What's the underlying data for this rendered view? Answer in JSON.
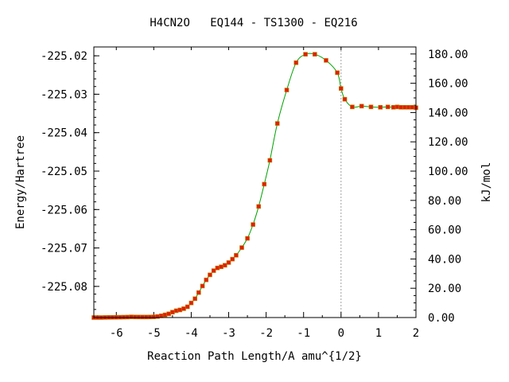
{
  "chart_data": {
    "type": "line",
    "title": "H4CN2O   EQ144 - TS1300 - EQ216",
    "xlabel": "Reaction Path Length/A amu^{1/2}",
    "ylabel": "Energy/Hartree",
    "y2label": "kJ/mol",
    "xlim": [
      -6.6,
      2.0
    ],
    "ylim": [
      -225.0881,
      -225.0177
    ],
    "y2lim": [
      0.0,
      184.8
    ],
    "x_ticks": [
      -6,
      -5,
      -4,
      -3,
      -2,
      -1,
      0,
      1,
      2
    ],
    "x_tick_labels": [
      "-6",
      "-5",
      "-4",
      "-3",
      "-2",
      "-1",
      "0",
      "1",
      "2"
    ],
    "y_ticks": [
      -225.02,
      -225.03,
      -225.04,
      -225.05,
      -225.06,
      -225.07,
      -225.08
    ],
    "y_tick_labels": [
      "-225.02",
      "-225.03",
      "-225.04",
      "-225.05",
      "-225.06",
      "-225.07",
      "-225.08"
    ],
    "y2_ticks": [
      0,
      20,
      40,
      60,
      80,
      100,
      120,
      140,
      160,
      180
    ],
    "y2_tick_labels": [
      "0.00",
      "20.00",
      "40.00",
      "60.00",
      "80.00",
      "100.00",
      "120.00",
      "140.00",
      "160.00",
      "180.00"
    ],
    "ts_marker_x": 0.0,
    "colors": {
      "curve": "#00a000",
      "marker": "#e02000",
      "marker_center": "#c08000",
      "ts_line": "#a0a0a0",
      "axis": "#000000"
    },
    "series": [
      {
        "x": [
          -6.6,
          -6.5,
          -6.4,
          -6.3,
          -6.2,
          -6.1,
          -6.0,
          -5.9,
          -5.8,
          -5.7,
          -5.6,
          -5.5,
          -5.4,
          -5.3,
          -5.2,
          -5.1,
          -5.0,
          -4.9,
          -4.8,
          -4.7,
          -4.6,
          -4.5,
          -4.4,
          -4.3,
          -4.2,
          -4.1,
          -4.0,
          -3.9,
          -3.8,
          -3.7,
          -3.6,
          -3.5,
          -3.4,
          -3.3,
          -3.2,
          -3.1,
          -3.0,
          -2.9,
          -2.8,
          -2.65,
          -2.5,
          -2.35,
          -2.2,
          -2.05,
          -1.9,
          -1.7,
          -1.45,
          -1.2,
          -0.95,
          -0.7,
          -0.4,
          -0.1,
          0.0,
          0.1,
          0.3,
          0.55,
          0.8,
          1.05,
          1.25,
          1.4,
          1.5,
          1.6,
          1.7,
          1.8,
          1.9,
          2.0
        ],
        "y": [
          -225.0881,
          -225.0881,
          -225.0881,
          -225.08808,
          -225.08806,
          -225.08805,
          -225.08804,
          -225.08802,
          -225.088,
          -225.08798,
          -225.08792,
          -225.08795,
          -225.08796,
          -225.08797,
          -225.08797,
          -225.08795,
          -225.08792,
          -225.08783,
          -225.08765,
          -225.0874,
          -225.08713,
          -225.0867,
          -225.08633,
          -225.08612,
          -225.0858,
          -225.0853,
          -225.0843,
          -225.0832,
          -225.0816,
          -225.0799,
          -225.0783,
          -225.077,
          -225.0759,
          -225.0752,
          -225.0749,
          -225.0745,
          -225.0738,
          -225.0729,
          -225.0719,
          -225.0699,
          -225.0675,
          -225.0639,
          -225.0592,
          -225.0534,
          -225.0472,
          -225.0376,
          -225.0289,
          -225.0218,
          -225.0196,
          -225.0196,
          -225.0212,
          -225.0244,
          -225.0285,
          -225.0313,
          -225.0333,
          -225.0331,
          -225.0333,
          -225.0334,
          -225.0333,
          -225.0334,
          -225.0333,
          -225.0334,
          -225.0334,
          -225.0334,
          -225.0334,
          -225.0335
        ]
      }
    ]
  }
}
